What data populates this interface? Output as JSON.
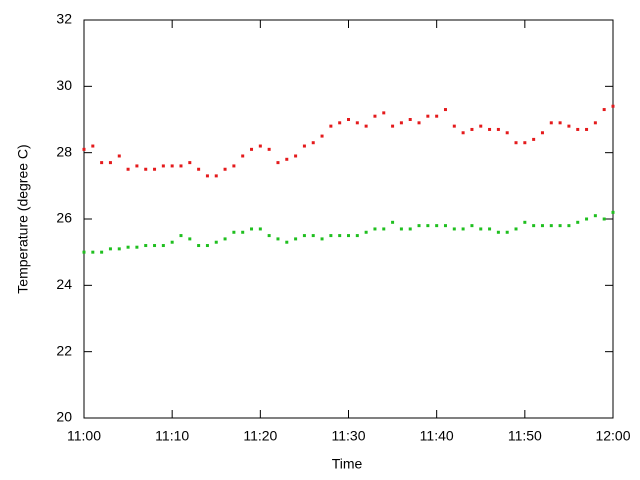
{
  "chart_data": {
    "type": "scatter",
    "x_label": "Time",
    "y_label": "Temperature (degree C)",
    "x": [
      "11:00",
      "11:01",
      "11:02",
      "11:03",
      "11:04",
      "11:05",
      "11:06",
      "11:07",
      "11:08",
      "11:09",
      "11:10",
      "11:11",
      "11:12",
      "11:13",
      "11:14",
      "11:15",
      "11:16",
      "11:17",
      "11:18",
      "11:19",
      "11:20",
      "11:21",
      "11:22",
      "11:23",
      "11:24",
      "11:25",
      "11:26",
      "11:27",
      "11:28",
      "11:29",
      "11:30",
      "11:31",
      "11:32",
      "11:33",
      "11:34",
      "11:35",
      "11:36",
      "11:37",
      "11:38",
      "11:39",
      "11:40",
      "11:41",
      "11:42",
      "11:43",
      "11:44",
      "11:45",
      "11:46",
      "11:47",
      "11:48",
      "11:49",
      "11:50",
      "11:51",
      "11:52",
      "11:53",
      "11:54",
      "11:55",
      "11:56",
      "11:57",
      "11:58",
      "11:59",
      "12:00"
    ],
    "series": [
      {
        "color": "#e41a1c",
        "values": [
          28.1,
          28.2,
          27.7,
          27.7,
          27.9,
          27.5,
          27.6,
          27.5,
          27.5,
          27.6,
          27.6,
          27.6,
          27.7,
          27.5,
          27.3,
          27.3,
          27.5,
          27.6,
          27.9,
          28.1,
          28.2,
          28.1,
          27.7,
          27.8,
          27.9,
          28.2,
          28.3,
          28.5,
          28.8,
          28.9,
          29.0,
          28.9,
          28.8,
          29.1,
          29.2,
          28.8,
          28.9,
          29.0,
          28.9,
          29.1,
          29.1,
          29.3,
          28.8,
          28.6,
          28.7,
          28.8,
          28.7,
          28.7,
          28.6,
          28.3,
          28.3,
          28.4,
          28.6,
          28.9,
          28.9,
          28.8,
          28.7,
          28.7,
          28.9,
          29.3,
          29.4
        ]
      },
      {
        "color": "#1fbf1f",
        "values": [
          25.0,
          25.0,
          25.0,
          25.1,
          25.1,
          25.15,
          25.15,
          25.2,
          25.2,
          25.2,
          25.3,
          25.5,
          25.4,
          25.2,
          25.2,
          25.3,
          25.4,
          25.6,
          25.6,
          25.7,
          25.7,
          25.5,
          25.4,
          25.3,
          25.4,
          25.5,
          25.5,
          25.4,
          25.5,
          25.5,
          25.5,
          25.5,
          25.6,
          25.7,
          25.7,
          25.9,
          25.7,
          25.7,
          25.8,
          25.8,
          25.8,
          25.8,
          25.7,
          25.7,
          25.8,
          25.7,
          25.7,
          25.6,
          25.6,
          25.7,
          25.9,
          25.8,
          25.8,
          25.8,
          25.8,
          25.8,
          25.9,
          26.0,
          26.1,
          26.0,
          26.2
        ]
      }
    ],
    "xlim": [
      "11:00",
      "12:00"
    ],
    "xticks": [
      "11:00",
      "11:10",
      "11:20",
      "11:30",
      "11:40",
      "11:50",
      "12:00"
    ],
    "ylim": [
      20,
      32
    ],
    "yticks": [
      20,
      22,
      24,
      26,
      28,
      30,
      32
    ]
  }
}
